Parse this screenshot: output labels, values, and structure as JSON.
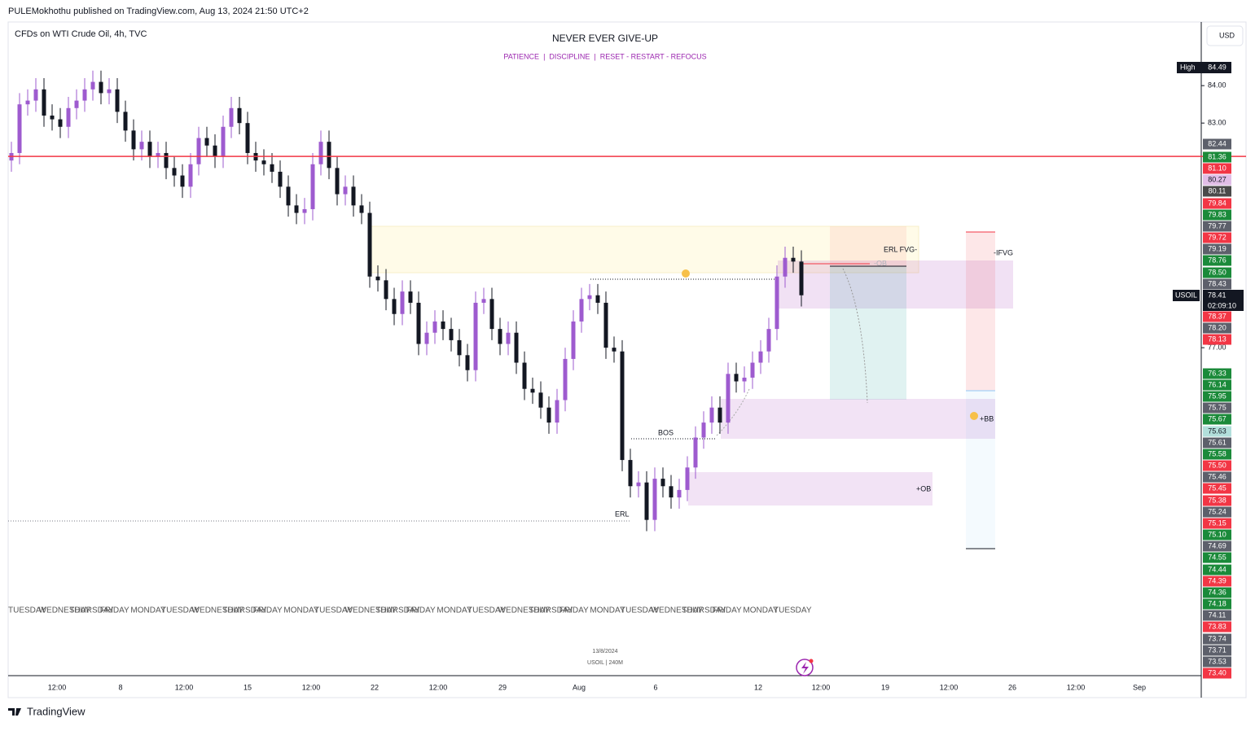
{
  "header": "PULEMokhothu published on TradingView.com, Aug 13, 2024 21:50 UTC+2",
  "symbol": "CFDs on WTI Crude Oil, 4h, TVC",
  "title": "NEVER EVER GIVE-UP",
  "subtitle": "PATIENCE  |  DISCIPLINE  |  RESET - RESTART - REFOCUS",
  "currency": "USD",
  "annotations": {
    "erl_fvg": "ERL FVG-",
    "ob_minus": "-OB",
    "ifvg": "-IFVG",
    "bb": "+BB",
    "bos": "BOS",
    "erl": "ERL",
    "ob_plus": "+OB"
  },
  "watermark": {
    "date": "13/8/2024",
    "symbol": "USOIL | 240M"
  },
  "footer": "TradingView",
  "high_tag": {
    "label": "High",
    "price": "84.49"
  },
  "current_price": {
    "symbol": "USOIL",
    "price": "78.41",
    "countdown": "02:09:10"
  },
  "time_labels": [
    "12:00",
    "8",
    "12:00",
    "15",
    "12:00",
    "22",
    "12:00",
    "29",
    "Aug",
    "6",
    "12",
    "12:00",
    "19",
    "12:00",
    "26",
    "12:00",
    "Sep"
  ],
  "weekday_labels": [
    "TUESDAY",
    "WEDNESDAY",
    "THURSDAY",
    "FRIDAY",
    "MONDAY",
    "TUESDAY",
    "WEDNESDAY",
    "THURSDAY",
    "FRIDAY",
    "MONDAY",
    "TUESDAY",
    "WEDNESDAY",
    "THURSDAY",
    "FRIDAY",
    "MONDAY",
    "TUESDAY",
    "WEDNESDAY",
    "THURSDAY",
    "FRIDAY",
    "MONDAY",
    "TUESDAY",
    "WEDNESDAY",
    "THURSDAY",
    "FRIDAY",
    "MONDAY",
    "TUESDAY"
  ],
  "price_tags": [
    {
      "label": "82.44",
      "color": "#5d606b"
    },
    {
      "label": "81.36",
      "color": "#1b8a3a"
    },
    {
      "label": "81.10",
      "color": "#f23645"
    },
    {
      "label": "80.27",
      "color": "#e1bee7",
      "text_color": "#131722"
    },
    {
      "label": "80.11",
      "color": "#4a4a4a"
    },
    {
      "label": "79.84",
      "color": "#f23645"
    },
    {
      "label": "79.83",
      "color": "#1b8a3a"
    },
    {
      "label": "79.77",
      "color": "#5d606b"
    },
    {
      "label": "79.72",
      "color": "#f23645"
    },
    {
      "label": "79.19",
      "color": "#5d606b"
    },
    {
      "label": "78.76",
      "color": "#1b8a3a"
    },
    {
      "label": "78.50",
      "color": "#1b8a3a"
    },
    {
      "label": "78.43",
      "color": "#5d606b"
    },
    {
      "label": "78.37",
      "color": "#f23645"
    },
    {
      "label": "78.20",
      "color": "#5d606b"
    },
    {
      "label": "78.13",
      "color": "#f23645"
    },
    {
      "label": "76.33",
      "color": "#1b8a3a"
    },
    {
      "label": "76.14",
      "color": "#1b8a3a"
    },
    {
      "label": "75.95",
      "color": "#1b8a3a"
    },
    {
      "label": "75.75",
      "color": "#5d606b"
    },
    {
      "label": "75.67",
      "color": "#1b8a3a"
    },
    {
      "label": "75.63",
      "color": "#b2dfdb",
      "text_color": "#131722"
    },
    {
      "label": "75.61",
      "color": "#5d606b"
    },
    {
      "label": "75.58",
      "color": "#1b8a3a"
    },
    {
      "label": "75.50",
      "color": "#f23645"
    },
    {
      "label": "75.46",
      "color": "#5d606b"
    },
    {
      "label": "75.45",
      "color": "#f23645"
    },
    {
      "label": "75.38",
      "color": "#f23645"
    },
    {
      "label": "75.24",
      "color": "#5d606b"
    },
    {
      "label": "75.15",
      "color": "#f23645"
    },
    {
      "label": "75.10",
      "color": "#1b8a3a"
    },
    {
      "label": "74.69",
      "color": "#5d606b"
    },
    {
      "label": "74.55",
      "color": "#1b8a3a"
    },
    {
      "label": "74.44",
      "color": "#1b8a3a"
    },
    {
      "label": "74.39",
      "color": "#f23645"
    },
    {
      "label": "74.36",
      "color": "#1b8a3a"
    },
    {
      "label": "74.18",
      "color": "#1b8a3a"
    },
    {
      "label": "74.11",
      "color": "#5d606b"
    },
    {
      "label": "73.83",
      "color": "#f23645"
    },
    {
      "label": "73.74",
      "color": "#5d606b"
    },
    {
      "label": "73.71",
      "color": "#5d606b"
    },
    {
      "label": "73.53",
      "color": "#5d606b"
    },
    {
      "label": "73.40",
      "color": "#f23645"
    }
  ],
  "chart_data": {
    "type": "candlestick",
    "up_color": "#9e5bcf",
    "down_color": "#131722",
    "ylim": [
      68.24,
      85.7
    ],
    "yticks": [
      {
        "value": 84,
        "label": "84.00"
      },
      {
        "value": 83,
        "label": "83.00"
      },
      {
        "value": 77,
        "label": "77.00"
      }
    ],
    "levels": [
      {
        "price": 82.11,
        "color": "#f23645"
      }
    ],
    "open": [
      82.0,
      82.2,
      83.5,
      83.6,
      83.9,
      83.2,
      83.1,
      82.9,
      83.4,
      83.6,
      83.9,
      84.1,
      83.8,
      83.9,
      83.3,
      82.8,
      82.3,
      82.5,
      82.1,
      82.2,
      81.8,
      81.6,
      81.3,
      81.9,
      82.6,
      82.4,
      82.1,
      82.9,
      83.4,
      83.0,
      82.2,
      82.0,
      81.9,
      81.7,
      81.3,
      80.8,
      80.6,
      80.7,
      81.9,
      82.5,
      81.8,
      81.1,
      81.3,
      80.8,
      80.6,
      78.9,
      78.8,
      78.3,
      77.9,
      78.5,
      78.2,
      77.1,
      77.4,
      77.7,
      77.5,
      77.2,
      76.8,
      76.4,
      78.2,
      78.3,
      77.5,
      77.1,
      77.4,
      76.6,
      75.9,
      75.8,
      75.4,
      75.0,
      75.6,
      76.7,
      77.7,
      78.3,
      78.4,
      78.2,
      77.0,
      76.9,
      74.0,
      73.3,
      73.4,
      72.4,
      73.5,
      73.3,
      73.0,
      73.2,
      73.8,
      74.6,
      75.0,
      75.4,
      75.0,
      76.3,
      76.1,
      76.2,
      76.6,
      76.9,
      77.5,
      78.9,
      79.4,
      79.3
    ],
    "high": [
      82.5,
      83.8,
      83.9,
      84.2,
      84.2,
      83.5,
      83.4,
      83.7,
      83.9,
      84.2,
      84.4,
      84.4,
      84.2,
      84.2,
      83.6,
      83.1,
      82.8,
      82.8,
      82.5,
      82.5,
      82.1,
      81.9,
      82.2,
      82.9,
      82.9,
      82.7,
      83.2,
      83.7,
      83.7,
      83.3,
      82.5,
      82.3,
      82.2,
      82.0,
      81.6,
      81.1,
      81.0,
      82.2,
      82.8,
      82.8,
      82.1,
      81.6,
      81.6,
      81.1,
      80.9,
      79.2,
      79.1,
      78.6,
      78.8,
      78.8,
      78.5,
      77.7,
      78.0,
      78.0,
      77.8,
      77.5,
      77.1,
      78.5,
      78.6,
      78.6,
      77.8,
      77.7,
      77.7,
      76.9,
      76.2,
      76.1,
      75.7,
      75.9,
      77.0,
      78.0,
      78.6,
      78.7,
      78.7,
      78.5,
      77.3,
      77.2,
      74.3,
      73.7,
      73.7,
      73.8,
      73.8,
      73.6,
      73.5,
      74.1,
      74.9,
      75.3,
      75.7,
      75.7,
      76.6,
      76.6,
      76.5,
      76.9,
      77.2,
      77.8,
      79.2,
      79.7,
      79.7,
      79.6
    ],
    "low": [
      81.7,
      81.9,
      83.2,
      83.3,
      82.9,
      82.8,
      82.6,
      82.6,
      83.1,
      83.3,
      83.6,
      83.5,
      83.5,
      83.0,
      82.5,
      82.0,
      82.0,
      81.8,
      81.8,
      81.5,
      81.3,
      81.0,
      81.0,
      81.6,
      82.1,
      81.8,
      81.8,
      82.6,
      82.7,
      81.9,
      81.7,
      81.6,
      81.4,
      81.0,
      80.5,
      80.3,
      80.3,
      80.4,
      81.6,
      81.5,
      80.8,
      80.8,
      80.5,
      80.3,
      78.6,
      78.5,
      78.0,
      77.6,
      77.6,
      77.9,
      76.8,
      76.8,
      77.1,
      77.2,
      76.9,
      76.5,
      76.1,
      76.1,
      77.9,
      77.2,
      76.8,
      76.8,
      76.3,
      75.6,
      75.5,
      75.1,
      74.7,
      74.7,
      75.3,
      76.4,
      77.4,
      78.0,
      77.9,
      76.7,
      76.6,
      73.7,
      73.0,
      73.0,
      72.1,
      72.1,
      73.0,
      72.7,
      72.7,
      72.9,
      73.5,
      74.3,
      74.7,
      74.7,
      74.7,
      75.8,
      75.8,
      75.9,
      76.3,
      76.6,
      77.2,
      78.6,
      79.0,
      78.1
    ],
    "close": [
      82.2,
      83.5,
      83.6,
      83.9,
      83.2,
      83.1,
      82.9,
      83.4,
      83.6,
      83.9,
      84.1,
      83.8,
      83.9,
      83.3,
      82.8,
      82.3,
      82.5,
      82.1,
      82.2,
      81.8,
      81.6,
      81.3,
      81.9,
      82.6,
      82.4,
      82.1,
      82.9,
      83.4,
      83.0,
      82.2,
      82.0,
      81.9,
      81.7,
      81.3,
      80.8,
      80.6,
      80.7,
      81.9,
      82.5,
      81.8,
      81.1,
      81.3,
      80.8,
      80.6,
      78.9,
      78.8,
      78.3,
      77.9,
      78.5,
      78.2,
      77.1,
      77.4,
      77.7,
      77.5,
      77.2,
      76.8,
      76.4,
      78.2,
      78.3,
      77.5,
      77.1,
      77.4,
      76.6,
      75.9,
      75.8,
      75.4,
      75.0,
      75.6,
      76.7,
      77.7,
      78.3,
      78.4,
      78.2,
      77.0,
      76.9,
      74.0,
      73.3,
      73.4,
      72.4,
      73.5,
      73.3,
      73.0,
      73.2,
      73.8,
      74.6,
      75.0,
      75.4,
      75.0,
      76.3,
      76.1,
      76.2,
      76.6,
      76.9,
      77.5,
      78.9,
      79.4,
      79.3,
      78.4
    ]
  }
}
